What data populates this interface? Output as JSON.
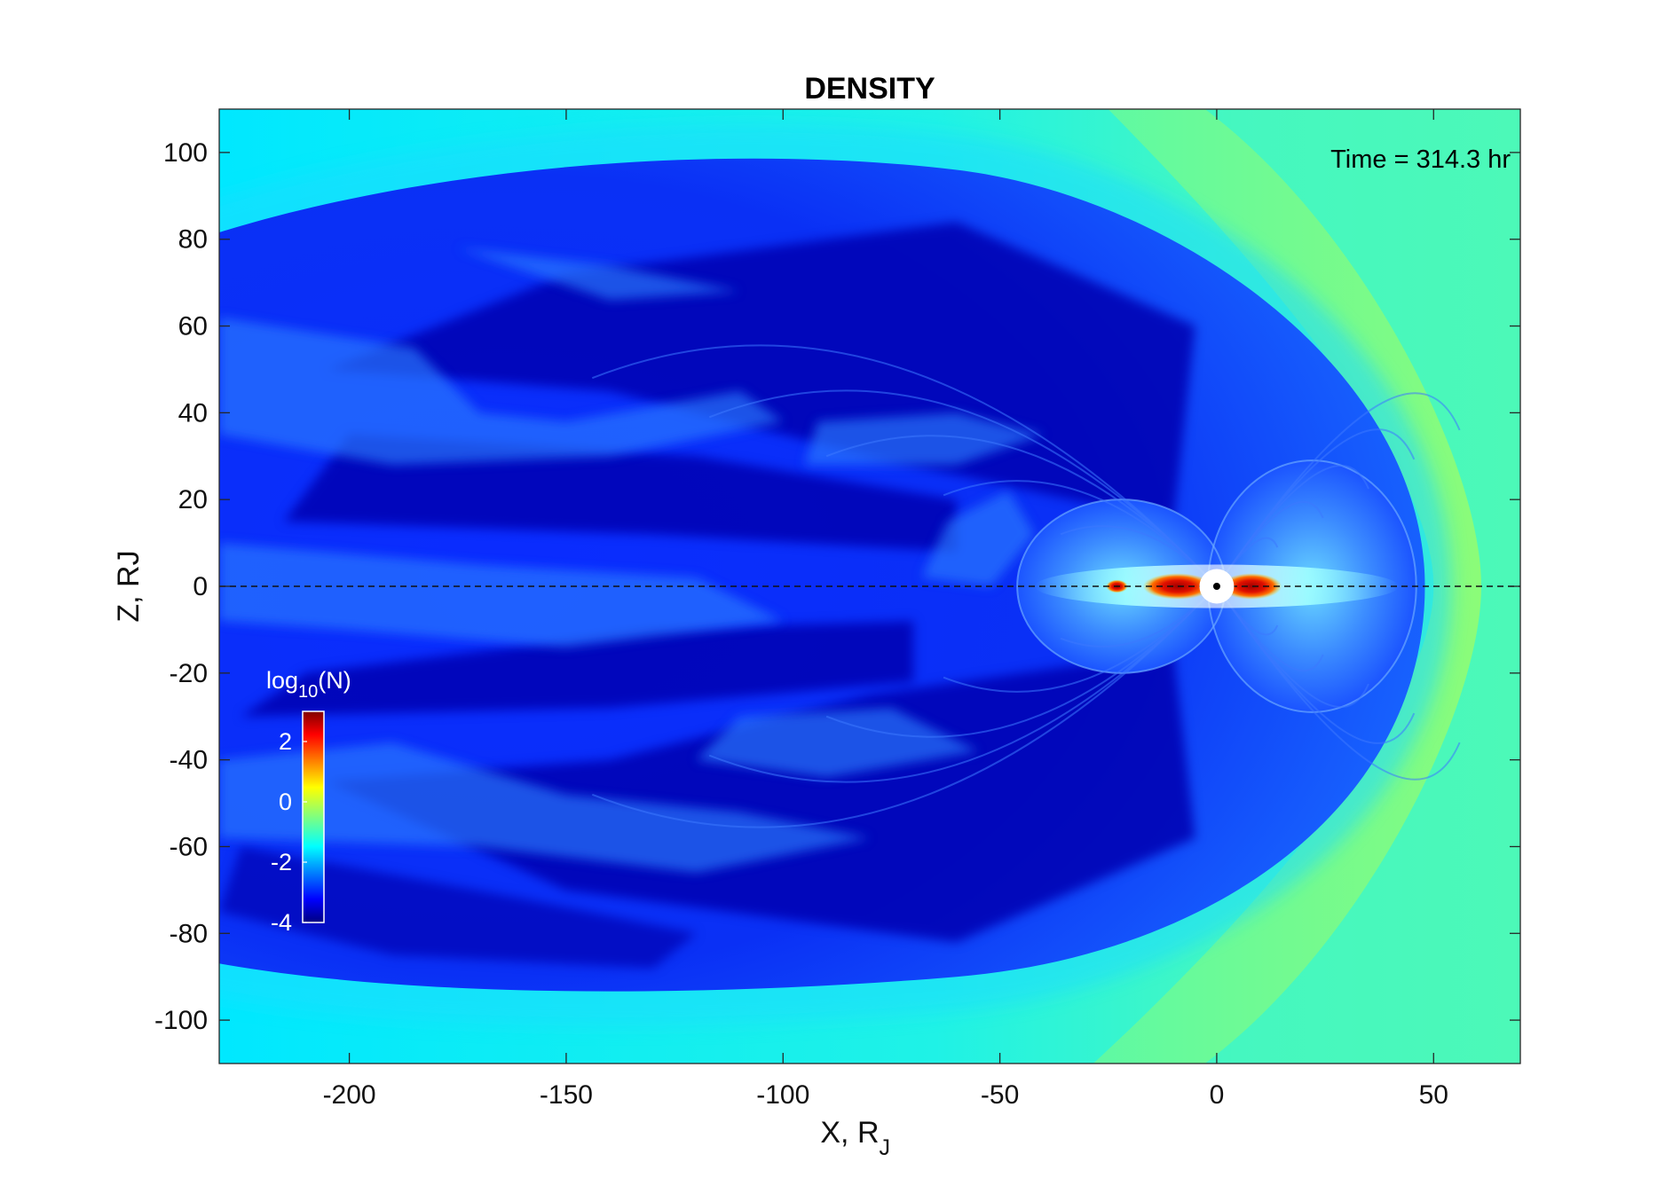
{
  "chart_data": {
    "type": "heatmap",
    "title": "DENSITY",
    "xlabel_main": "X, R",
    "xlabel_sub": "J",
    "ylabel": "Z, RJ",
    "xlim": [
      -230,
      70
    ],
    "ylim": [
      -110,
      110
    ],
    "x_ticks": [
      -200,
      -150,
      -100,
      -50,
      0,
      50
    ],
    "y_ticks": [
      100,
      80,
      60,
      40,
      20,
      0,
      -20,
      -40,
      -60,
      -80,
      -100
    ],
    "annotation": "Time = 314.3 hr",
    "colorbar": {
      "label_main": "log",
      "label_sub": "10",
      "label_tail": "(N)",
      "range": [
        -4,
        3
      ],
      "ticks": [
        2,
        0,
        -2,
        -4
      ],
      "colormap": "jet"
    },
    "reference_line": {
      "axis": "y",
      "value": 0,
      "style": "dashed"
    },
    "features": {
      "solar_wind_log10N": -1,
      "magnetosheath_log10N": -0.5,
      "magnetosphere_log10N": -3.5,
      "plasma_disk_peak_log10N": 3,
      "bow_shock_nose_x": 61,
      "magnetopause_nose_x": 48,
      "planet_radius": 4
    }
  },
  "colors": {
    "solar_wind": "#00e9ff",
    "sheath": "#4effb8",
    "sheath_inner": "#80ff80",
    "lobe_dark": "#0000a8",
    "lobe_mid": "#0040ff",
    "disk_hot": "#d80000"
  }
}
